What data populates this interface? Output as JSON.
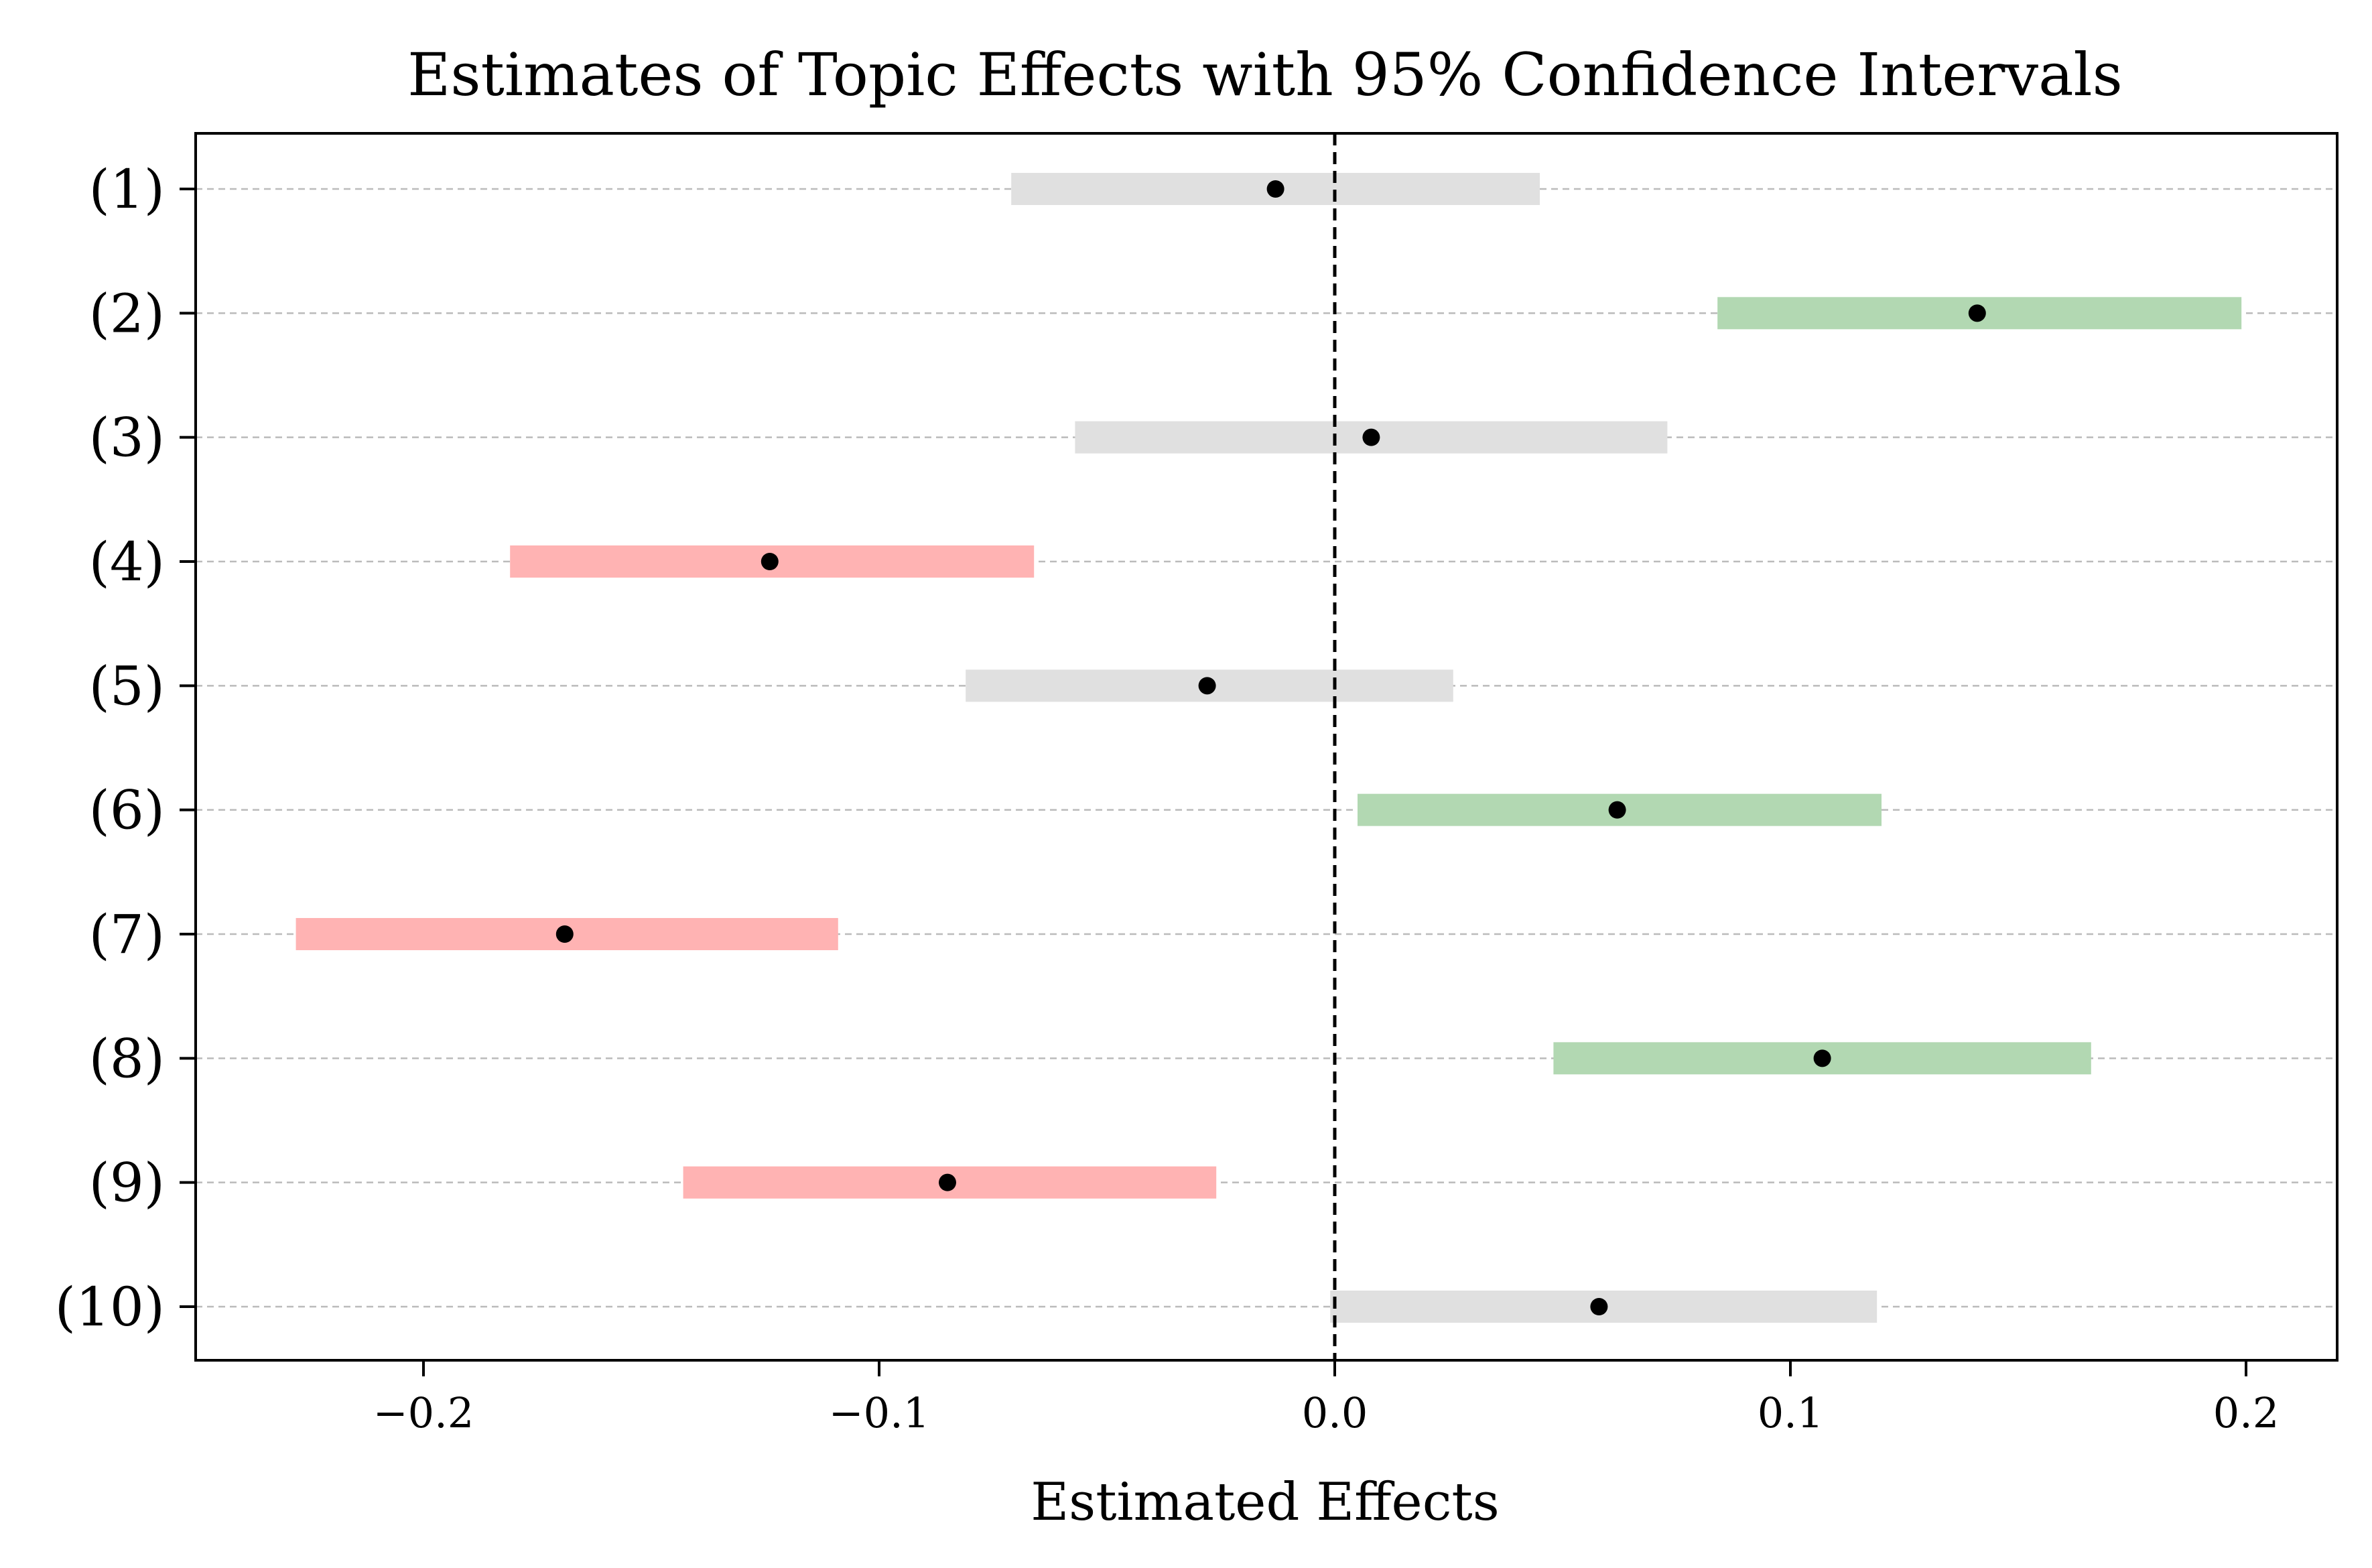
{
  "chart_data": {
    "type": "forest",
    "title": "Estimates of Topic Effects with 95% Confidence Intervals",
    "xlabel": "Estimated Effects",
    "ylabel": "",
    "xlim": [
      -0.25,
      0.22
    ],
    "xticks": [
      -0.2,
      -0.1,
      0.0,
      0.1,
      0.2
    ],
    "xtick_labels": [
      "−0.2",
      "−0.1",
      "0.0",
      "0.1",
      "0.2"
    ],
    "reference_line": 0.0,
    "grid": "horizontal dashed",
    "colors": {
      "positive": "#b2d8b2",
      "negative": "#ffb3b3",
      "neutral": "#e0e0e0",
      "point": "#000000",
      "reference": "#000000",
      "grid": "#bbbbbb"
    },
    "rows": [
      {
        "label": "(1)",
        "estimate": -0.013,
        "lower": -0.071,
        "upper": 0.045,
        "significance": "neutral"
      },
      {
        "label": "(2)",
        "estimate": 0.141,
        "lower": 0.084,
        "upper": 0.199,
        "significance": "positive"
      },
      {
        "label": "(3)",
        "estimate": 0.008,
        "lower": -0.057,
        "upper": 0.073,
        "significance": "neutral"
      },
      {
        "label": "(4)",
        "estimate": -0.124,
        "lower": -0.181,
        "upper": -0.066,
        "significance": "negative"
      },
      {
        "label": "(5)",
        "estimate": -0.028,
        "lower": -0.081,
        "upper": 0.026,
        "significance": "neutral"
      },
      {
        "label": "(6)",
        "estimate": 0.062,
        "lower": 0.005,
        "upper": 0.12,
        "significance": "positive"
      },
      {
        "label": "(7)",
        "estimate": -0.169,
        "lower": -0.228,
        "upper": -0.109,
        "significance": "negative"
      },
      {
        "label": "(8)",
        "estimate": 0.107,
        "lower": 0.048,
        "upper": 0.166,
        "significance": "positive"
      },
      {
        "label": "(9)",
        "estimate": -0.085,
        "lower": -0.143,
        "upper": -0.026,
        "significance": "negative"
      },
      {
        "label": "(10)",
        "estimate": 0.058,
        "lower": -0.001,
        "upper": 0.119,
        "significance": "neutral"
      }
    ]
  }
}
